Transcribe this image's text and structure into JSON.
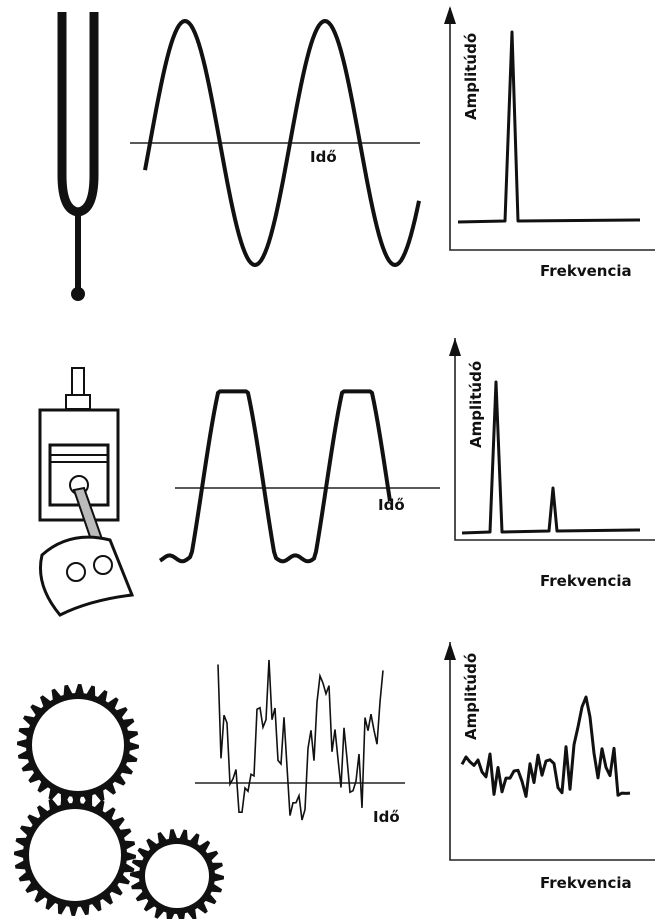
{
  "panels": [
    {
      "time_label": "Idő",
      "amplitude_label": "Amplitúdó",
      "frequency_label": "Frekvencia"
    },
    {
      "time_label": "Idő",
      "amplitude_label": "Amplitúdó",
      "frequency_label": "Frekvencia"
    },
    {
      "time_label": "Idő",
      "amplitude_label": "Amplitúdó",
      "frequency_label": "Frekvencia"
    }
  ]
}
